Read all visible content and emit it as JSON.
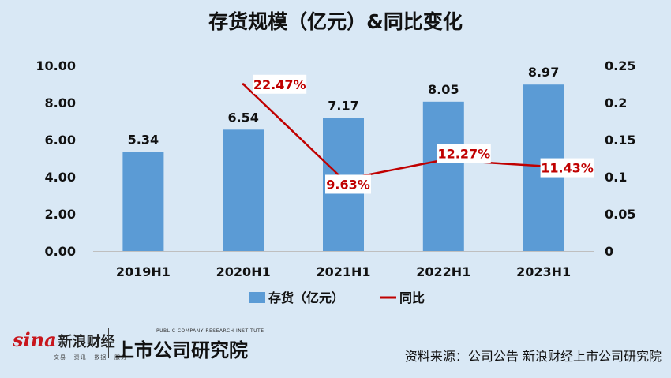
{
  "title": "存货规模（亿元）&同比变化",
  "source": "资料来源：公司公告 新浪财经上市公司研究院",
  "logos": {
    "sina_word": "sina",
    "sina_cn": "新浪财经",
    "sina_sub": "交易 · 资讯 · 数据 · 服务",
    "research_en": "PUBLIC COMPANY RESEARCH INSTITUTE",
    "research_cn": "上市公司研究院"
  },
  "colors": {
    "background": "#d9e8f5",
    "bar": "#5b9bd5",
    "line": "#c00000",
    "label_bg": "#ffffff"
  },
  "chart_data": {
    "type": "bar+line",
    "categories": [
      "2019H1",
      "2020H1",
      "2021H1",
      "2022H1",
      "2023H1"
    ],
    "series": [
      {
        "name": "存货（亿元）",
        "type": "bar",
        "axis": "left",
        "values": [
          5.34,
          6.54,
          7.17,
          8.05,
          8.97
        ],
        "labels": [
          "5.34",
          "6.54",
          "7.17",
          "8.05",
          "8.97"
        ]
      },
      {
        "name": "同比",
        "type": "line",
        "axis": "right",
        "values": [
          null,
          0.2247,
          0.0963,
          0.1227,
          0.1143
        ],
        "labels": [
          "",
          "22.47%",
          "9.63%",
          "12.27%",
          "11.43%"
        ]
      }
    ],
    "y_left": {
      "min": 0,
      "max": 10,
      "ticks": [
        "0.00",
        "2.00",
        "4.00",
        "6.00",
        "8.00",
        "10.00"
      ]
    },
    "y_right": {
      "min": 0,
      "max": 0.25,
      "ticks": [
        "0",
        "0.05",
        "0.1",
        "0.15",
        "0.2",
        "0.25"
      ]
    },
    "grid": false,
    "legend_position": "bottom"
  }
}
